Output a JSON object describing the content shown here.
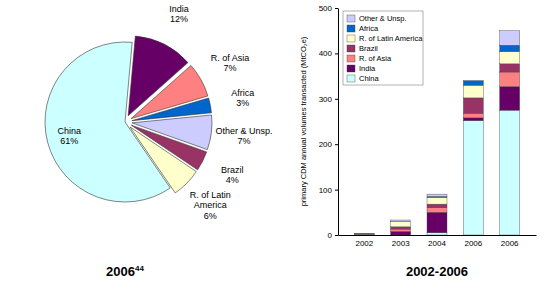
{
  "chart_data": [
    {
      "type": "pie",
      "title": "2006",
      "title_note": "44",
      "categories": [
        "India",
        "R. of Asia",
        "Africa",
        "Other & Unsp.",
        "Brazil",
        "R. of Latin America",
        "China"
      ],
      "values": [
        12,
        7,
        3,
        7,
        4,
        6,
        61
      ],
      "value_labels": [
        "12%",
        "7%",
        "3%",
        "7%",
        "4%",
        "6%",
        "61%"
      ],
      "colors": [
        "#660066",
        "#ff8080",
        "#0066cc",
        "#ccccff",
        "#993366",
        "#ffffcc",
        "#ccffff"
      ],
      "data_labels": true
    },
    {
      "type": "bar",
      "stacked": true,
      "title": "2002-2006",
      "y_label": "primary CDM annual volumes transacted (MtCO₂e)",
      "categories": [
        "2002",
        "2003",
        "2004",
        "2006",
        "2006"
      ],
      "series": [
        {
          "name": "China",
          "color": "#ccffff",
          "values": [
            0,
            0,
            5,
            252,
            275
          ]
        },
        {
          "name": "India",
          "color": "#660066",
          "values": [
            0.5,
            8,
            45,
            6,
            52
          ]
        },
        {
          "name": "R. of Asia",
          "color": "#ff8080",
          "values": [
            0.5,
            5,
            10,
            10,
            32
          ]
        },
        {
          "name": "Brazil",
          "color": "#993366",
          "values": [
            0.5,
            5,
            8,
            34,
            18
          ]
        },
        {
          "name": "R. of Latin America",
          "color": "#ffffcc",
          "values": [
            1,
            12,
            15,
            28,
            27
          ]
        },
        {
          "name": "Africa",
          "color": "#0066cc",
          "values": [
            0,
            0,
            2,
            10,
            14
          ]
        },
        {
          "name": "Other & Unsp.",
          "color": "#ccccff",
          "values": [
            0.5,
            3,
            5,
            0,
            32
          ]
        }
      ],
      "ylim": [
        0,
        500
      ],
      "yticks": [
        0,
        100,
        200,
        300,
        400,
        500
      ],
      "legend": "upper left",
      "grid": false
    }
  ]
}
